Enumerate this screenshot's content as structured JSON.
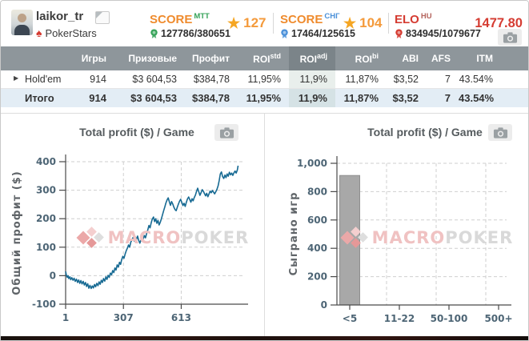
{
  "colors": {
    "orange": "#ef8b2d",
    "green": "#36a359",
    "blue": "#4a90d9",
    "red": "#d53c32",
    "hu_sup": "#b4635c",
    "star": "#f5a623",
    "star_value": "#f49a3b",
    "line": "#176a93",
    "bar": "#a8a8a8",
    "positive": "#2aa05c",
    "table_header": "#8e969b",
    "table_header_active": "#7b8489",
    "total_row_bg": "#e3edf5",
    "watermark_pink": "#f0c2c2",
    "watermark_gray": "#d9d9d9"
  },
  "header": {
    "username": "laikor_tr",
    "site": "PokerStars",
    "score_mtt": {
      "label": "SCORE",
      "sup": "MTT",
      "rank": "127786/380651",
      "stars": "127"
    },
    "score_sng": {
      "label": "SCORE",
      "sup": "СНГ",
      "rank": "17464/125615",
      "stars": "104"
    },
    "elo": {
      "label": "ELO",
      "sup": "HU",
      "rank": "834945/1079677",
      "value": "1477.80"
    }
  },
  "icons": {
    "star": "★",
    "spade": "♠",
    "expander": "▶"
  },
  "table": {
    "columns": [
      {
        "label": ""
      },
      {
        "label": "Игры"
      },
      {
        "label": "Призовые"
      },
      {
        "label": "Профит"
      },
      {
        "label": "ROI",
        "sup": "std"
      },
      {
        "label": "ROI",
        "sup": "adj"
      },
      {
        "label": "ROI",
        "sup": "bi"
      },
      {
        "label": "ABI"
      },
      {
        "label": "AFS"
      },
      {
        "label": "ITM"
      }
    ],
    "rows": [
      {
        "name": "Hold'em",
        "values": [
          "914",
          "$3 604,53",
          "$384,78",
          "11,95%",
          "11,9%",
          "11,87%",
          "$3,52",
          "7",
          "43.54%"
        ]
      },
      {
        "name": "Итого",
        "values": [
          "914",
          "$3 604,53",
          "$384,78",
          "11,95%",
          "11,9%",
          "11,87%",
          "$3,52",
          "7",
          "43.54%"
        ]
      }
    ]
  },
  "watermark": {
    "text_primary": "MACRO",
    "text_secondary": "POKER"
  },
  "chart_data": [
    {
      "type": "line",
      "title": "Total profit ($) / Game",
      "ylabel": "Общий профит ($)",
      "xlabel": "",
      "xlim": [
        1,
        950
      ],
      "ylim": [
        -100,
        400
      ],
      "yticks": [
        -100,
        0,
        100,
        200,
        300,
        400
      ],
      "xticks": [
        1,
        307,
        613
      ],
      "grid_x": [
        307,
        613
      ],
      "legend": false,
      "grid": true,
      "line_color": "#176a93",
      "points": [
        [
          1,
          15
        ],
        [
          5,
          2
        ],
        [
          10,
          -6
        ],
        [
          14,
          0
        ],
        [
          18,
          -10
        ],
        [
          24,
          -4
        ],
        [
          28,
          -14
        ],
        [
          34,
          -7
        ],
        [
          40,
          -16
        ],
        [
          46,
          -9
        ],
        [
          52,
          -20
        ],
        [
          58,
          -12
        ],
        [
          64,
          -24
        ],
        [
          70,
          -15
        ],
        [
          76,
          -27
        ],
        [
          82,
          -17
        ],
        [
          88,
          -29
        ],
        [
          94,
          -20
        ],
        [
          100,
          -33
        ],
        [
          106,
          -24
        ],
        [
          112,
          -38
        ],
        [
          118,
          -28
        ],
        [
          124,
          -44
        ],
        [
          130,
          -34
        ],
        [
          136,
          -45
        ],
        [
          142,
          -36
        ],
        [
          148,
          -43
        ],
        [
          154,
          -31
        ],
        [
          160,
          -39
        ],
        [
          166,
          -27
        ],
        [
          172,
          -35
        ],
        [
          178,
          -22
        ],
        [
          184,
          -30
        ],
        [
          190,
          -16
        ],
        [
          196,
          -24
        ],
        [
          202,
          -10
        ],
        [
          208,
          -19
        ],
        [
          214,
          -4
        ],
        [
          220,
          -13
        ],
        [
          226,
          1
        ],
        [
          232,
          -6
        ],
        [
          238,
          9
        ],
        [
          244,
          3
        ],
        [
          250,
          18
        ],
        [
          256,
          11
        ],
        [
          262,
          27
        ],
        [
          268,
          20
        ],
        [
          274,
          38
        ],
        [
          280,
          30
        ],
        [
          286,
          47
        ],
        [
          292,
          40
        ],
        [
          298,
          57
        ],
        [
          304,
          68
        ],
        [
          310,
          61
        ],
        [
          316,
          76
        ],
        [
          322,
          88
        ],
        [
          328,
          97
        ],
        [
          334,
          108
        ],
        [
          340,
          100
        ],
        [
          346,
          117
        ],
        [
          352,
          126
        ],
        [
          358,
          134
        ],
        [
          364,
          122
        ],
        [
          370,
          136
        ],
        [
          376,
          127
        ],
        [
          382,
          139
        ],
        [
          388,
          124
        ],
        [
          394,
          114
        ],
        [
          400,
          126
        ],
        [
          406,
          137
        ],
        [
          412,
          129
        ],
        [
          418,
          141
        ],
        [
          424,
          133
        ],
        [
          430,
          149
        ],
        [
          436,
          161
        ],
        [
          442,
          176
        ],
        [
          448,
          168
        ],
        [
          454,
          185
        ],
        [
          460,
          199
        ],
        [
          466,
          206
        ],
        [
          472,
          190
        ],
        [
          478,
          200
        ],
        [
          484,
          184
        ],
        [
          490,
          194
        ],
        [
          496,
          178
        ],
        [
          502,
          188
        ],
        [
          508,
          200
        ],
        [
          514,
          214
        ],
        [
          520,
          228
        ],
        [
          526,
          241
        ],
        [
          532,
          255
        ],
        [
          538,
          266
        ],
        [
          544,
          273
        ],
        [
          550,
          259
        ],
        [
          556,
          247
        ],
        [
          562,
          260
        ],
        [
          568,
          252
        ],
        [
          574,
          241
        ],
        [
          580,
          232
        ],
        [
          586,
          228
        ],
        [
          592,
          240
        ],
        [
          598,
          251
        ],
        [
          604,
          261
        ],
        [
          610,
          268
        ],
        [
          616,
          257
        ],
        [
          622,
          246
        ],
        [
          628,
          254
        ],
        [
          634,
          243
        ],
        [
          640,
          257
        ],
        [
          646,
          269
        ],
        [
          652,
          276
        ],
        [
          658,
          267
        ],
        [
          664,
          258
        ],
        [
          670,
          270
        ],
        [
          676,
          263
        ],
        [
          682,
          274
        ],
        [
          688,
          283
        ],
        [
          694,
          296
        ],
        [
          700,
          307
        ],
        [
          706,
          294
        ],
        [
          712,
          282
        ],
        [
          718,
          291
        ],
        [
          724,
          302
        ],
        [
          730,
          296
        ],
        [
          736,
          288
        ],
        [
          742,
          280
        ],
        [
          748,
          289
        ],
        [
          754,
          277
        ],
        [
          760,
          287
        ],
        [
          766,
          297
        ],
        [
          772,
          291
        ],
        [
          778,
          299
        ],
        [
          784,
          293
        ],
        [
          790,
          287
        ],
        [
          796,
          295
        ],
        [
          802,
          303
        ],
        [
          808,
          315
        ],
        [
          814,
          334
        ],
        [
          820,
          357
        ],
        [
          826,
          364
        ],
        [
          832,
          348
        ],
        [
          838,
          341
        ],
        [
          844,
          353
        ],
        [
          850,
          344
        ],
        [
          856,
          357
        ],
        [
          862,
          349
        ],
        [
          868,
          363
        ],
        [
          874,
          354
        ],
        [
          880,
          360
        ],
        [
          886,
          352
        ],
        [
          892,
          361
        ],
        [
          898,
          367
        ],
        [
          904,
          360
        ],
        [
          910,
          371
        ],
        [
          914,
          386
        ]
      ]
    },
    {
      "type": "bar",
      "title": "Total profit ($) / Game",
      "ylabel": "Сыграно игр",
      "xlabel": "",
      "categories": [
        "<5",
        "11-22",
        "50-100",
        "500+"
      ],
      "values": [
        914,
        0,
        0,
        0
      ],
      "ylim": [
        0,
        1000
      ],
      "yticks": [
        0,
        200,
        400,
        600,
        800,
        1000
      ],
      "ytick_labels": [
        "0",
        "200",
        "400",
        "600",
        "800",
        "1,000"
      ],
      "legend": false,
      "grid": true,
      "bar_color": "#a8a8a8",
      "bar_border": "#8f8f8f"
    }
  ]
}
